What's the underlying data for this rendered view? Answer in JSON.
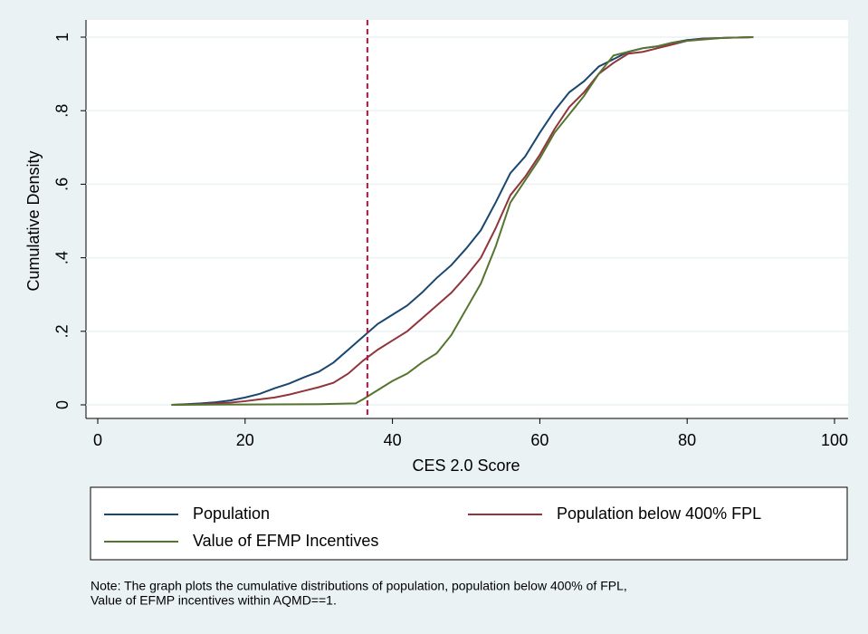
{
  "chart_data": {
    "type": "line",
    "xlabel": "CES 2.0 Score",
    "ylabel": "Cumulative Density",
    "xlim": [
      0,
      100
    ],
    "xticks": [
      0,
      20,
      40,
      60,
      80,
      100
    ],
    "ylim": [
      0,
      1
    ],
    "yticks": [
      0,
      {
        "value": 0.2,
        "label": ".2"
      },
      {
        "value": 0.4,
        "label": ".4"
      },
      {
        "value": 0.6,
        "label": ".6"
      },
      {
        "value": 0.8,
        "label": ".8"
      },
      1
    ],
    "grid": true,
    "reference_line": {
      "x": 36.6,
      "color": "#c0143c"
    },
    "series": [
      {
        "name": "Population",
        "color": "#1a476f",
        "x": [
          10,
          12,
          14,
          16,
          18,
          20,
          22,
          24,
          26,
          28,
          30,
          32,
          34,
          36,
          38,
          40,
          42,
          44,
          46,
          48,
          50,
          52,
          54,
          56,
          58,
          60,
          62,
          64,
          66,
          68,
          70,
          72,
          74,
          76,
          78,
          80,
          82,
          85,
          89
        ],
        "values": [
          0,
          0.002,
          0.004,
          0.007,
          0.012,
          0.02,
          0.03,
          0.045,
          0.058,
          0.075,
          0.09,
          0.115,
          0.15,
          0.185,
          0.22,
          0.245,
          0.27,
          0.305,
          0.345,
          0.38,
          0.425,
          0.475,
          0.55,
          0.63,
          0.675,
          0.74,
          0.8,
          0.85,
          0.88,
          0.92,
          0.94,
          0.96,
          0.97,
          0.975,
          0.985,
          0.992,
          0.996,
          0.998,
          1
        ]
      },
      {
        "name": "Population below 400% FPL",
        "color": "#90353b",
        "x": [
          10,
          14,
          18,
          20,
          22,
          24,
          26,
          28,
          30,
          32,
          34,
          36,
          38,
          40,
          42,
          44,
          46,
          48,
          50,
          52,
          54,
          56,
          58,
          60,
          62,
          64,
          66,
          68,
          70,
          72,
          74,
          76,
          78,
          80,
          82,
          85,
          89
        ],
        "values": [
          0,
          0.002,
          0.006,
          0.01,
          0.015,
          0.02,
          0.028,
          0.038,
          0.048,
          0.06,
          0.085,
          0.12,
          0.15,
          0.175,
          0.2,
          0.235,
          0.27,
          0.305,
          0.35,
          0.4,
          0.48,
          0.57,
          0.62,
          0.68,
          0.75,
          0.81,
          0.85,
          0.9,
          0.93,
          0.955,
          0.96,
          0.97,
          0.98,
          0.99,
          0.995,
          0.998,
          1
        ]
      },
      {
        "name": "Value of EFMP Incentives",
        "color": "#55752f",
        "x": [
          10,
          20,
          30,
          35,
          36,
          38,
          40,
          42,
          44,
          46,
          48,
          50,
          52,
          54,
          56,
          58,
          60,
          62,
          64,
          66,
          68,
          70,
          72,
          74,
          76,
          78,
          80,
          85,
          89
        ],
        "values": [
          0,
          0.001,
          0.002,
          0.004,
          0.015,
          0.04,
          0.065,
          0.085,
          0.115,
          0.14,
          0.19,
          0.26,
          0.33,
          0.43,
          0.55,
          0.61,
          0.67,
          0.74,
          0.79,
          0.84,
          0.9,
          0.95,
          0.96,
          0.97,
          0.975,
          0.985,
          0.99,
          0.998,
          1
        ]
      }
    ],
    "note": [
      "Note: The graph plots the cumulative distributions of population,  population below 400% of FPL,",
      "Value of EFMP incentives within AQMD==1."
    ]
  }
}
